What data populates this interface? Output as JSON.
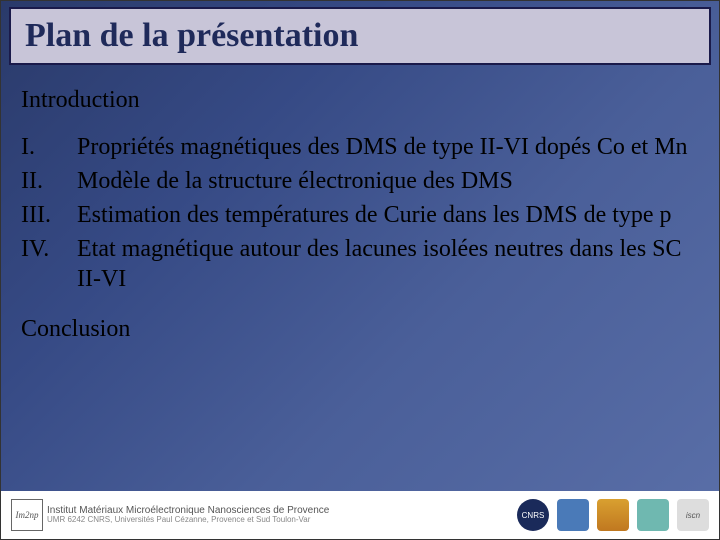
{
  "title": "Plan de la présentation",
  "intro": "Introduction",
  "items": [
    {
      "num": "I.",
      "text": "Propriétés magnétiques des DMS de type II-VI dopés Co et Mn"
    },
    {
      "num": "II.",
      "text": "Modèle de la structure électronique des DMS"
    },
    {
      "num": "III.",
      "text": "Estimation des températures de Curie dans les DMS de type p"
    },
    {
      "num": "IV.",
      "text": "Etat magnétique autour des lacunes isolées neutres dans les SC II-VI"
    }
  ],
  "conclusion": "Conclusion",
  "footer": {
    "logo_text": "Im2np",
    "inst_line1": "Institut Matériaux Microélectronique Nanosciences de Provence",
    "inst_line2": "UMR 6242 CNRS, Universités Paul Cézanne, Provence et Sud Toulon-Var",
    "logos": [
      "CNRS",
      "",
      "",
      "",
      "iscn"
    ]
  },
  "style": {
    "title_color": "#1f2a5a",
    "title_bg": "#c8c5d8",
    "title_border": "#1a1a4a",
    "body_bg_gradient": [
      "#2a3a6a",
      "#364a85",
      "#4a5f99",
      "#5a6fa8"
    ],
    "body_text_color": "#000000",
    "title_fontsize": 34,
    "body_fontsize": 24,
    "footer_bg": "#ffffff"
  }
}
